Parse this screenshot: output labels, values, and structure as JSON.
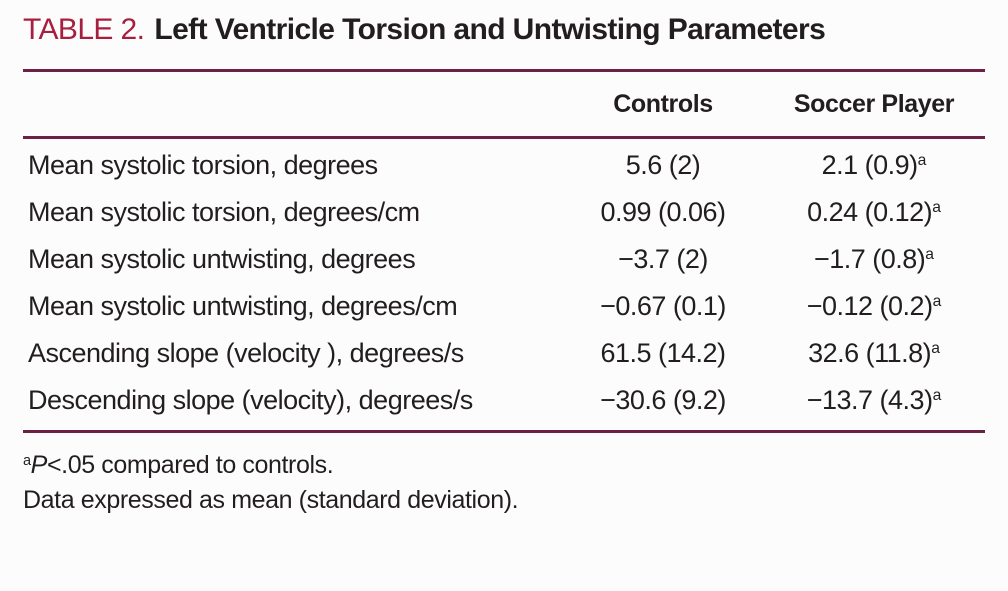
{
  "title": {
    "label": "TABLE 2.",
    "text": "Left Ventricle Torsion and Untwisting Parameters"
  },
  "table": {
    "columns": [
      {
        "label": "Controls"
      },
      {
        "label": "Soccer Player"
      }
    ],
    "rows": [
      {
        "parameter": "Mean systolic torsion, degrees",
        "controls": "5.6 (2)",
        "soccer_player": "2.1 (0.9)",
        "sup": "a"
      },
      {
        "parameter": "Mean systolic torsion, degrees/cm",
        "controls": "0.99 (0.06)",
        "soccer_player": "0.24 (0.12)",
        "sup": "a"
      },
      {
        "parameter": "Mean systolic untwisting, degrees",
        "controls": "−3.7 (2)",
        "soccer_player": "−1.7 (0.8)",
        "sup": "a"
      },
      {
        "parameter": "Mean systolic untwisting, degrees/cm",
        "controls": "−0.67 (0.1)",
        "soccer_player": "−0.12 (0.2)",
        "sup": "a"
      },
      {
        "parameter": "Ascending slope (velocity ), degrees/s",
        "controls": "61.5 (14.2)",
        "soccer_player": "32.6 (11.8)",
        "sup": "a"
      },
      {
        "parameter": "Descending slope (velocity), degrees/s",
        "controls": "−30.6 (9.2)",
        "soccer_player": "−13.7 (4.3)",
        "sup": "a"
      }
    ]
  },
  "footnotes": {
    "significance": {
      "sup": "a",
      "symbol": "P",
      "text": "<.05 compared to controls."
    },
    "data_note": "Data expressed as mean (standard deviation)."
  },
  "colors": {
    "accent_red": "#a81e3e",
    "rule_maroon": "#6b2143",
    "text": "#221e1f",
    "background": "#fdfcfc"
  }
}
